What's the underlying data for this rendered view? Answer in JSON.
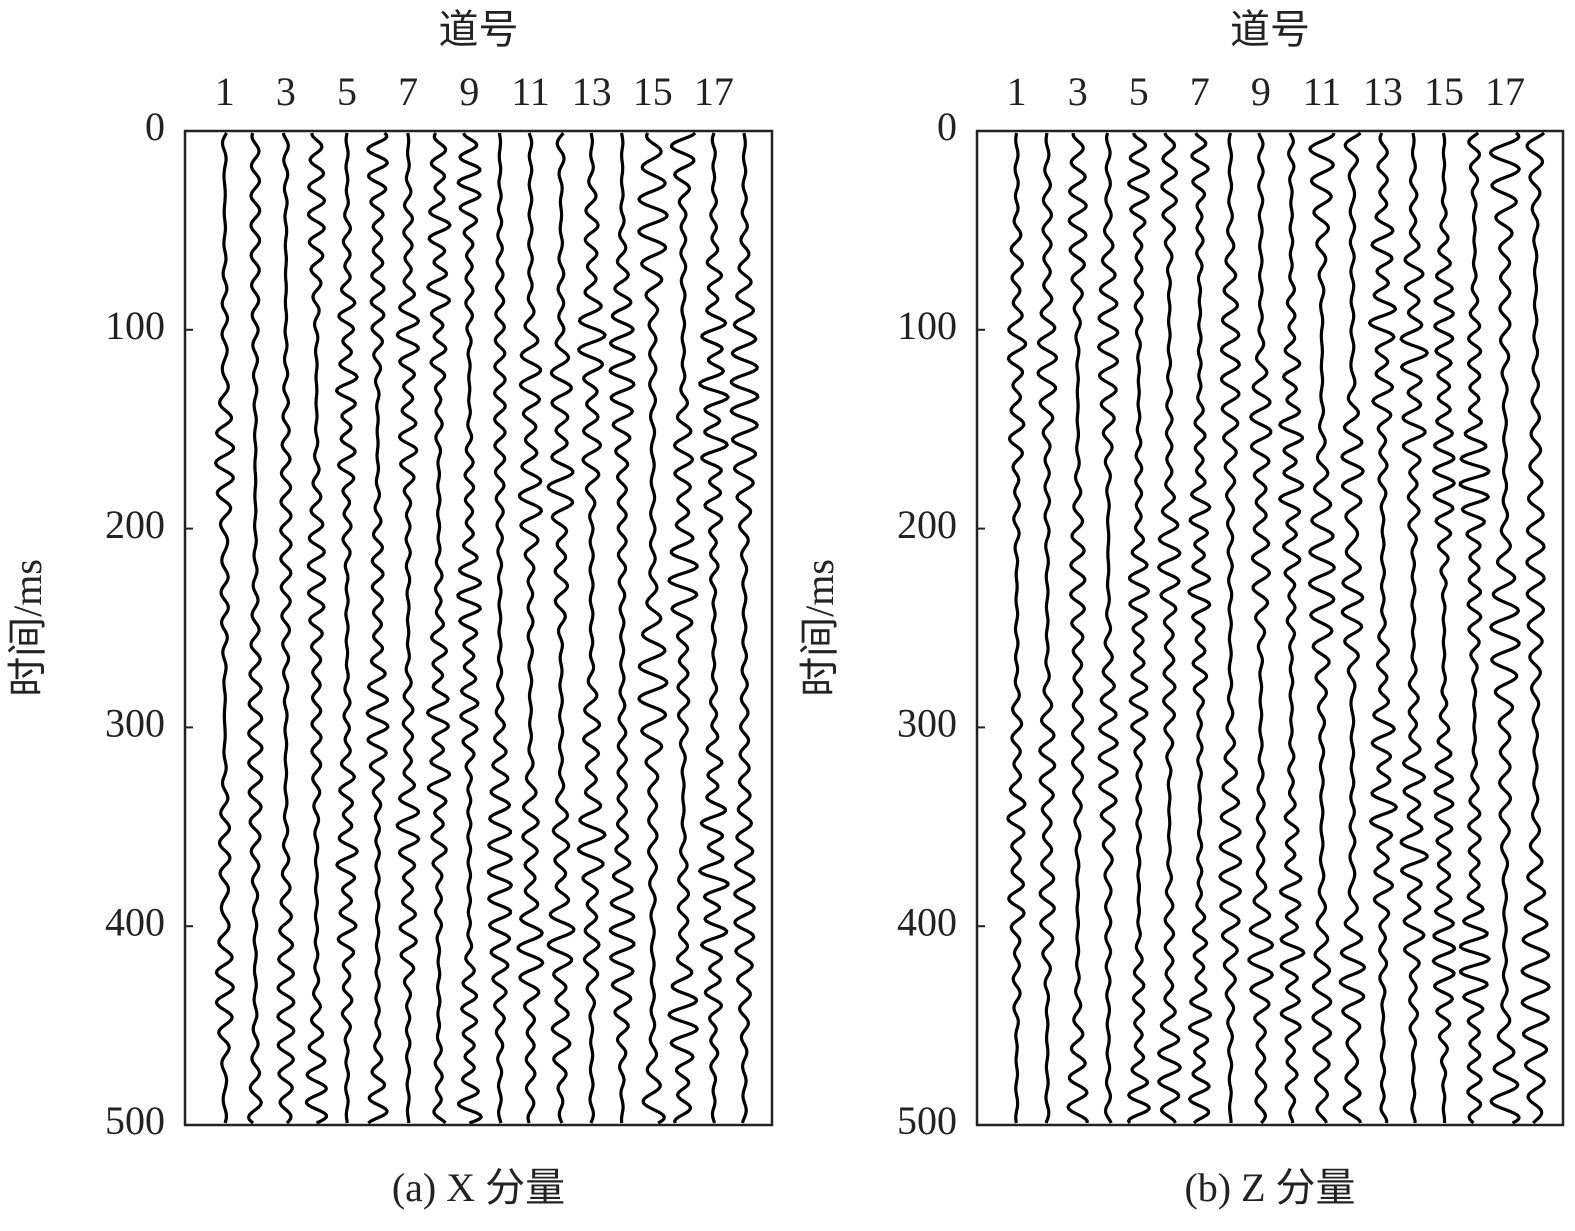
{
  "chart_data": [
    {
      "type": "wiggle",
      "x_label": "道号",
      "y_label": "时间/ms",
      "caption": "(a) X 分量",
      "xlim": [
        -0.3,
        18.9
      ],
      "xticks": [
        1,
        3,
        5,
        7,
        9,
        11,
        13,
        15,
        17
      ],
      "ylim": [
        0,
        500
      ],
      "yticks": [
        0,
        100,
        200,
        300,
        400,
        500
      ],
      "y_inverted": true,
      "color": "#000000"
    },
    {
      "type": "wiggle",
      "x_label": "道号",
      "y_label": "时间/ms",
      "caption": "(b) Z 分量",
      "xlim": [
        -0.3,
        18.9
      ],
      "xticks": [
        1,
        3,
        5,
        7,
        9,
        11,
        13,
        15,
        17
      ],
      "ylim": [
        0,
        500
      ],
      "yticks": [
        0,
        100,
        200,
        300,
        400,
        500
      ],
      "y_inverted": true,
      "color": "#000000"
    }
  ]
}
